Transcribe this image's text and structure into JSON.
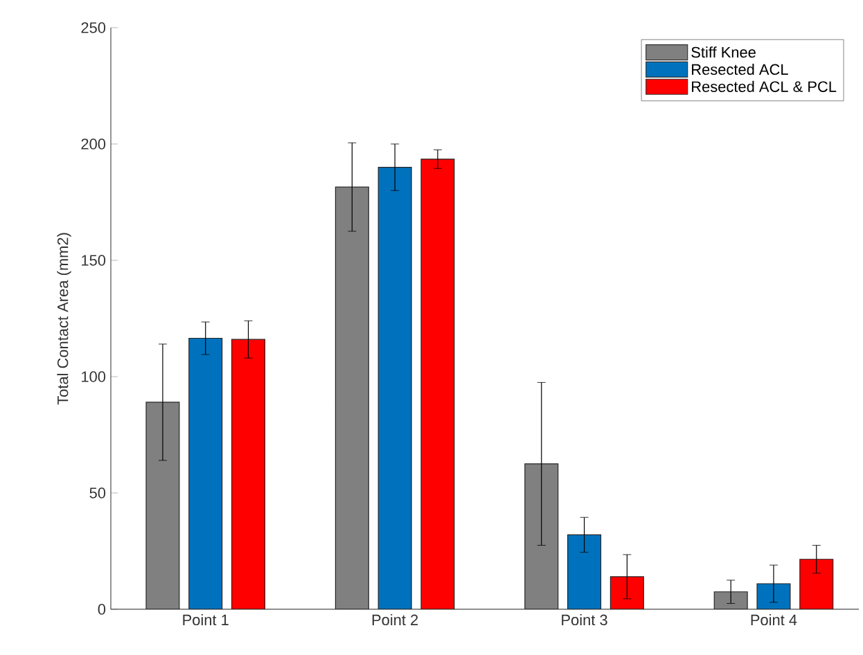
{
  "chart_data": {
    "type": "bar",
    "ylabel": "Total Contact Area (mm2)",
    "categories": [
      "Point 1",
      "Point 2",
      "Point 3",
      "Point 4"
    ],
    "series": [
      {
        "name": "Stiff Knee",
        "color": "#808080",
        "values": [
          89,
          181.5,
          62.5,
          7.5
        ],
        "errors": [
          25,
          19,
          35,
          5
        ]
      },
      {
        "name": "Resected ACL",
        "color": "#0072bd",
        "values": [
          116.5,
          190,
          32,
          11
        ],
        "errors": [
          7,
          10,
          7.5,
          8
        ]
      },
      {
        "name": "Resected ACL & PCL",
        "color": "#ff0000",
        "values": [
          116,
          193.5,
          14,
          21.5
        ],
        "errors": [
          8,
          4,
          9.5,
          6
        ]
      }
    ],
    "ylim": [
      0,
      250
    ],
    "yticks": [
      0,
      50,
      100,
      150,
      200,
      250
    ],
    "legend": "top right",
    "grid": false
  }
}
